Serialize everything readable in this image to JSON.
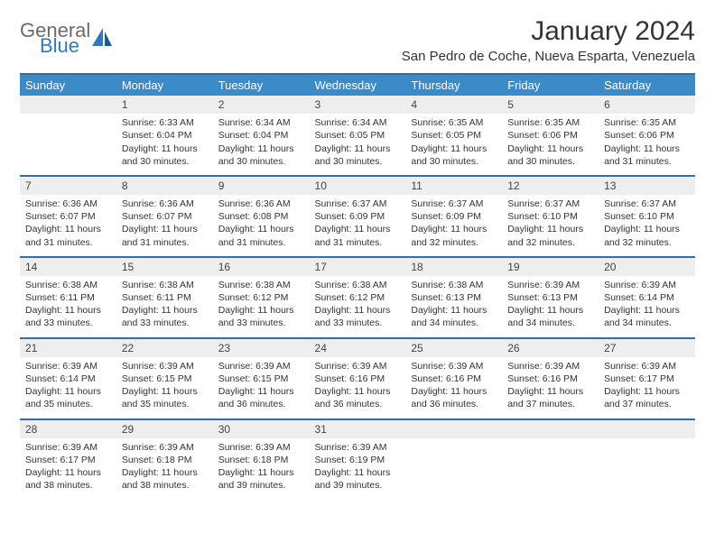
{
  "logo": {
    "line1": "General",
    "line2": "Blue"
  },
  "title": "January 2024",
  "location": "San Pedro de Coche, Nueva Esparta, Venezuela",
  "colors": {
    "header_bg": "#3b8bc9",
    "header_border": "#2f6fa3",
    "daynum_bg": "#eeeeee",
    "text": "#333333",
    "logo_gray": "#6b6b6b",
    "logo_blue": "#2f7abf"
  },
  "weekdays": [
    "Sunday",
    "Monday",
    "Tuesday",
    "Wednesday",
    "Thursday",
    "Friday",
    "Saturday"
  ],
  "weeks": [
    {
      "daynums": [
        "",
        "1",
        "2",
        "3",
        "4",
        "5",
        "6"
      ],
      "cells": [
        "",
        "Sunrise: 6:33 AM\nSunset: 6:04 PM\nDaylight: 11 hours and 30 minutes.",
        "Sunrise: 6:34 AM\nSunset: 6:04 PM\nDaylight: 11 hours and 30 minutes.",
        "Sunrise: 6:34 AM\nSunset: 6:05 PM\nDaylight: 11 hours and 30 minutes.",
        "Sunrise: 6:35 AM\nSunset: 6:05 PM\nDaylight: 11 hours and 30 minutes.",
        "Sunrise: 6:35 AM\nSunset: 6:06 PM\nDaylight: 11 hours and 30 minutes.",
        "Sunrise: 6:35 AM\nSunset: 6:06 PM\nDaylight: 11 hours and 31 minutes."
      ]
    },
    {
      "daynums": [
        "7",
        "8",
        "9",
        "10",
        "11",
        "12",
        "13"
      ],
      "cells": [
        "Sunrise: 6:36 AM\nSunset: 6:07 PM\nDaylight: 11 hours and 31 minutes.",
        "Sunrise: 6:36 AM\nSunset: 6:07 PM\nDaylight: 11 hours and 31 minutes.",
        "Sunrise: 6:36 AM\nSunset: 6:08 PM\nDaylight: 11 hours and 31 minutes.",
        "Sunrise: 6:37 AM\nSunset: 6:09 PM\nDaylight: 11 hours and 31 minutes.",
        "Sunrise: 6:37 AM\nSunset: 6:09 PM\nDaylight: 11 hours and 32 minutes.",
        "Sunrise: 6:37 AM\nSunset: 6:10 PM\nDaylight: 11 hours and 32 minutes.",
        "Sunrise: 6:37 AM\nSunset: 6:10 PM\nDaylight: 11 hours and 32 minutes."
      ]
    },
    {
      "daynums": [
        "14",
        "15",
        "16",
        "17",
        "18",
        "19",
        "20"
      ],
      "cells": [
        "Sunrise: 6:38 AM\nSunset: 6:11 PM\nDaylight: 11 hours and 33 minutes.",
        "Sunrise: 6:38 AM\nSunset: 6:11 PM\nDaylight: 11 hours and 33 minutes.",
        "Sunrise: 6:38 AM\nSunset: 6:12 PM\nDaylight: 11 hours and 33 minutes.",
        "Sunrise: 6:38 AM\nSunset: 6:12 PM\nDaylight: 11 hours and 33 minutes.",
        "Sunrise: 6:38 AM\nSunset: 6:13 PM\nDaylight: 11 hours and 34 minutes.",
        "Sunrise: 6:39 AM\nSunset: 6:13 PM\nDaylight: 11 hours and 34 minutes.",
        "Sunrise: 6:39 AM\nSunset: 6:14 PM\nDaylight: 11 hours and 34 minutes."
      ]
    },
    {
      "daynums": [
        "21",
        "22",
        "23",
        "24",
        "25",
        "26",
        "27"
      ],
      "cells": [
        "Sunrise: 6:39 AM\nSunset: 6:14 PM\nDaylight: 11 hours and 35 minutes.",
        "Sunrise: 6:39 AM\nSunset: 6:15 PM\nDaylight: 11 hours and 35 minutes.",
        "Sunrise: 6:39 AM\nSunset: 6:15 PM\nDaylight: 11 hours and 36 minutes.",
        "Sunrise: 6:39 AM\nSunset: 6:16 PM\nDaylight: 11 hours and 36 minutes.",
        "Sunrise: 6:39 AM\nSunset: 6:16 PM\nDaylight: 11 hours and 36 minutes.",
        "Sunrise: 6:39 AM\nSunset: 6:16 PM\nDaylight: 11 hours and 37 minutes.",
        "Sunrise: 6:39 AM\nSunset: 6:17 PM\nDaylight: 11 hours and 37 minutes."
      ]
    },
    {
      "daynums": [
        "28",
        "29",
        "30",
        "31",
        "",
        "",
        ""
      ],
      "cells": [
        "Sunrise: 6:39 AM\nSunset: 6:17 PM\nDaylight: 11 hours and 38 minutes.",
        "Sunrise: 6:39 AM\nSunset: 6:18 PM\nDaylight: 11 hours and 38 minutes.",
        "Sunrise: 6:39 AM\nSunset: 6:18 PM\nDaylight: 11 hours and 39 minutes.",
        "Sunrise: 6:39 AM\nSunset: 6:19 PM\nDaylight: 11 hours and 39 minutes.",
        "",
        "",
        ""
      ]
    }
  ]
}
